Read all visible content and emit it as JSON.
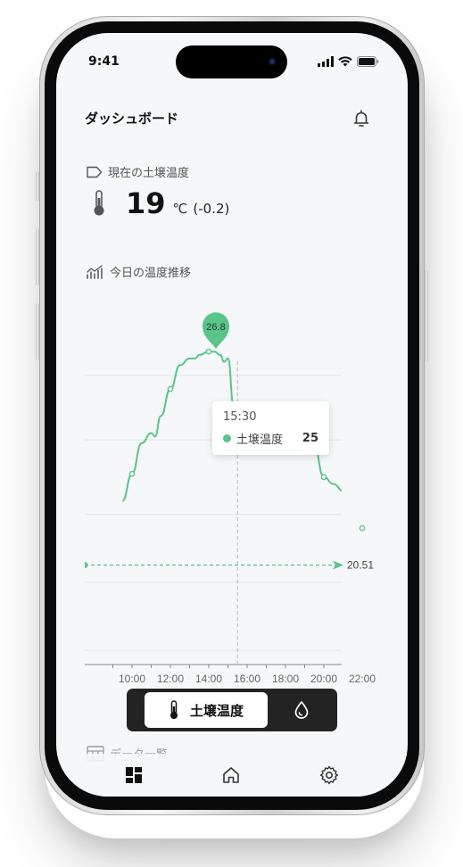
{
  "status": {
    "time": "9:41"
  },
  "header": {
    "title": "ダッシュボード"
  },
  "current_temp": {
    "section_label": "現在の土壌温度",
    "value": "19",
    "unit": "℃",
    "delta": "(-0.2)"
  },
  "trend": {
    "section_label": "今日の温度推移"
  },
  "chart_data": {
    "type": "line",
    "series": [
      {
        "name": "土壌温度",
        "x": [
          9.5,
          10,
          10.5,
          11,
          11.2,
          11.5,
          12,
          12.5,
          13,
          13.3,
          13.5,
          14,
          14.3,
          14.6,
          14.8,
          15,
          15.3,
          15.5,
          16,
          16.2,
          16.5,
          16.8,
          17,
          17.2,
          17.5,
          18,
          18.5,
          19,
          19.5,
          20,
          20.5,
          21,
          21.5,
          22,
          22.5
        ],
        "y": [
          22.4,
          23.2,
          24.1,
          24.4,
          24.3,
          24.9,
          25.7,
          26.4,
          26.6,
          26.6,
          26.7,
          26.8,
          26.8,
          26.7,
          26.5,
          26.6,
          25.2,
          25.0,
          24.5,
          24.2,
          24.1,
          23.9,
          24.8,
          24.6,
          24.3,
          24.1,
          24.0,
          23.9,
          24.0,
          23.1,
          22.9,
          22.7,
          22.2,
          21.6,
          20.9
        ]
      }
    ],
    "x_tick_labels": [
      "10:00",
      "12:00",
      "14:00",
      "16:00",
      "18:00",
      "20:00",
      "22:00"
    ],
    "ylim": [
      17,
      27.2
    ],
    "gridlines_y": [
      18,
      20,
      22,
      24.2,
      26.1
    ],
    "max_marker": {
      "label": "26.8",
      "x": 14,
      "y": 26.8
    },
    "reference_line": {
      "label": "20.51",
      "y": 20.51
    },
    "cursor": {
      "x": 15.5
    },
    "tooltip": {
      "time": "15:30",
      "series": "土壌温度",
      "value": "25"
    },
    "color": "#5ac48a"
  },
  "toggle": {
    "active_label": "土壌温度"
  },
  "list": {
    "section_label": "データ一覧"
  },
  "colors": {
    "accent": "#5ac48a",
    "dark": "#232323",
    "background": "#f5f7f9"
  },
  "nav": {
    "items": [
      "dashboard-icon",
      "home-icon",
      "gear-icon"
    ]
  }
}
